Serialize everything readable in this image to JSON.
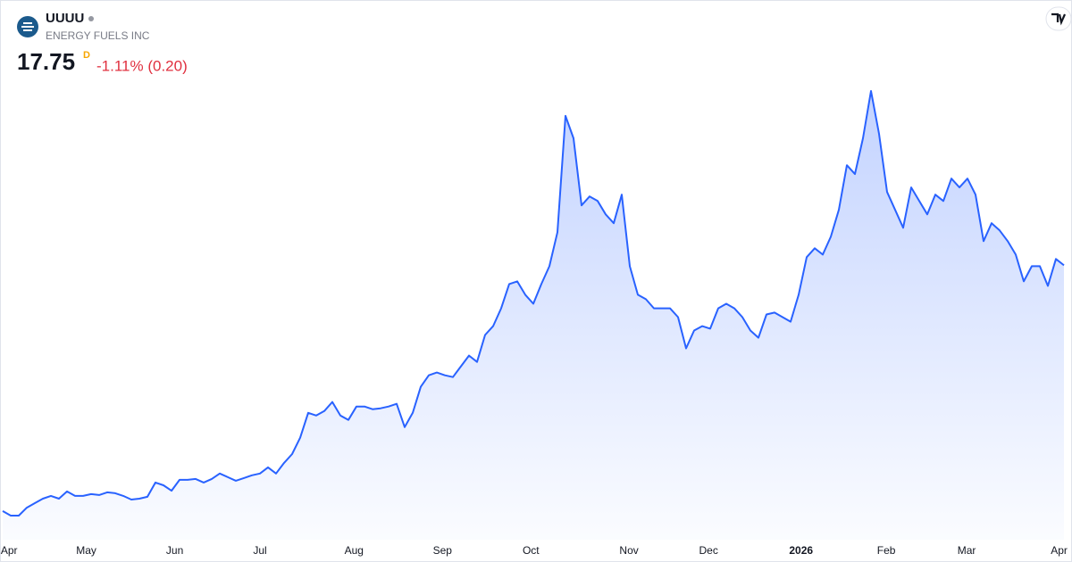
{
  "header": {
    "symbol": "UUUU",
    "company": "ENERGY FUELS INC",
    "price": "17.75",
    "interval": "D",
    "change": "-1.11% (0.20)"
  },
  "chart_data": {
    "type": "area",
    "color": "#2962ff",
    "values": [
      4.14,
      3.89,
      3.89,
      4.33,
      4.58,
      4.83,
      4.98,
      4.83,
      5.23,
      4.98,
      4.98,
      5.08,
      5.03,
      5.18,
      5.13,
      4.98,
      4.78,
      4.83,
      4.93,
      5.72,
      5.57,
      5.27,
      5.87,
      5.87,
      5.92,
      5.72,
      5.92,
      6.22,
      6.02,
      5.82,
      5.97,
      6.12,
      6.22,
      6.56,
      6.22,
      6.81,
      7.3,
      8.2,
      9.58,
      9.43,
      9.68,
      10.18,
      9.43,
      9.19,
      9.93,
      9.93,
      9.78,
      9.83,
      9.93,
      10.08,
      8.79,
      9.58,
      11.02,
      11.66,
      11.81,
      11.66,
      11.56,
      12.16,
      12.75,
      12.4,
      13.89,
      14.38,
      15.37,
      16.71,
      16.86,
      16.12,
      15.62,
      16.71,
      17.7,
      19.58,
      26.02,
      24.78,
      21.07,
      21.56,
      21.31,
      20.57,
      20.08,
      21.66,
      17.7,
      16.12,
      15.87,
      15.37,
      15.37,
      15.37,
      14.88,
      13.15,
      14.14,
      14.38,
      14.24,
      15.37,
      15.62,
      15.37,
      14.88,
      14.14,
      13.74,
      15.03,
      15.13,
      14.88,
      14.63,
      16.12,
      18.2,
      18.69,
      18.34,
      19.33,
      20.82,
      23.29,
      22.8,
      24.78,
      27.4,
      25.03,
      21.81,
      20.82,
      19.83,
      22.06,
      21.31,
      20.57,
      21.66,
      21.31,
      22.55,
      22.06,
      22.55,
      21.66,
      19.09,
      20.08,
      19.68,
      19.09,
      18.34,
      16.86,
      17.7,
      17.7,
      16.61,
      18.1,
      17.75
    ],
    "xticks": [
      {
        "value": 0.8,
        "label": "Apr"
      },
      {
        "value": 10.4,
        "label": "May"
      },
      {
        "value": 21.4,
        "label": "Jun"
      },
      {
        "value": 32,
        "label": "Jul"
      },
      {
        "value": 43.7,
        "label": "Aug"
      },
      {
        "value": 54.7,
        "label": "Sep"
      },
      {
        "value": 65.7,
        "label": "Oct"
      },
      {
        "value": 77.9,
        "label": "Nov"
      },
      {
        "value": 87.8,
        "label": "Dec"
      },
      {
        "value": 99.3,
        "label": "2026"
      },
      {
        "value": 109.9,
        "label": "Feb"
      },
      {
        "value": 119.9,
        "label": "Mar"
      },
      {
        "value": 131.4,
        "label": "Apr"
      }
    ]
  }
}
